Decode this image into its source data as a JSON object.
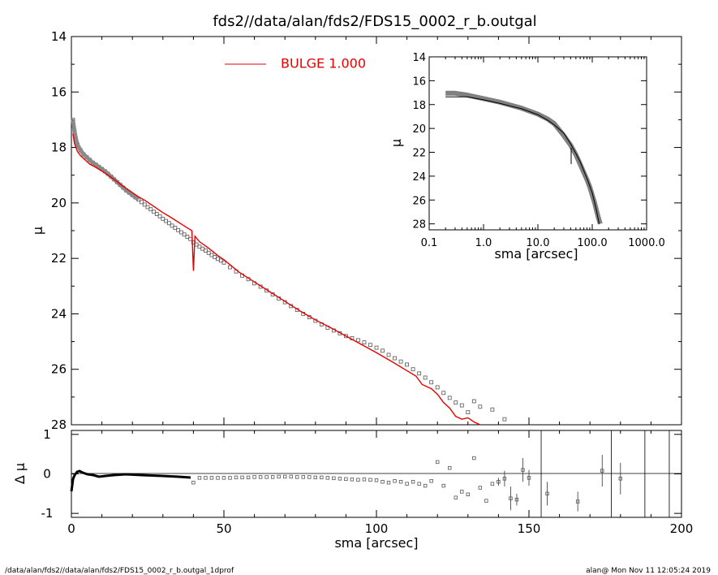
{
  "footer": {
    "left": "/data/alan/fds2//data/alan/fds2/FDS15_0002_r_b.outgal_1dprof",
    "right": "alan@  Mon Nov 11 12:05:24 2019"
  },
  "colors": {
    "model": "#e60000",
    "data": "#707070",
    "axis": "#000000"
  },
  "chart_data": [
    {
      "type": "scatter",
      "panel": "main",
      "title": "fds2//data/alan/fds2/FDS15_0002_r_b.outgal",
      "xlabel": "",
      "ylabel": "μ",
      "xlim": [
        0,
        200
      ],
      "ylim": [
        28,
        14
      ],
      "yticks": [
        14,
        16,
        18,
        20,
        22,
        24,
        26,
        28
      ],
      "legend": {
        "label": "BULGE  1.000",
        "placement": "top-center"
      },
      "series": [
        {
          "name": "data",
          "style": "squares",
          "x": [
            0.5,
            1,
            1.5,
            2,
            3,
            4,
            5,
            6,
            7,
            8,
            9,
            10,
            11,
            12,
            13,
            14,
            15,
            16,
            17,
            18,
            19,
            20,
            21,
            22,
            23,
            24,
            25,
            26,
            27,
            28,
            29,
            30,
            31,
            32,
            33,
            34,
            35,
            36,
            37,
            38,
            39,
            40,
            41,
            42,
            43,
            44,
            45,
            46,
            47,
            48,
            49,
            50,
            52,
            54,
            56,
            58,
            60,
            62,
            64,
            66,
            68,
            70,
            72,
            74,
            76,
            78,
            80,
            82,
            84,
            86,
            88,
            90,
            92,
            94,
            96,
            98,
            100,
            102,
            104,
            106,
            108,
            110,
            112,
            114,
            116,
            118,
            120,
            122,
            124,
            126,
            128,
            130,
            132,
            134,
            138,
            142
          ],
          "y": [
            17.0,
            17.4,
            17.7,
            17.9,
            18.1,
            18.25,
            18.35,
            18.45,
            18.55,
            18.62,
            18.7,
            18.78,
            18.86,
            18.95,
            19.05,
            19.15,
            19.25,
            19.35,
            19.45,
            19.55,
            19.63,
            19.72,
            19.8,
            19.88,
            19.97,
            20.06,
            20.15,
            20.23,
            20.32,
            20.4,
            20.48,
            20.57,
            20.65,
            20.73,
            20.82,
            20.9,
            20.98,
            21.06,
            21.14,
            21.22,
            21.3,
            21.42,
            21.5,
            21.58,
            21.65,
            21.72,
            21.8,
            21.88,
            21.95,
            22.02,
            22.08,
            22.15,
            22.32,
            22.47,
            22.62,
            22.75,
            22.9,
            23.02,
            23.16,
            23.3,
            23.45,
            23.58,
            23.72,
            23.86,
            24.0,
            24.12,
            24.25,
            24.38,
            24.5,
            24.6,
            24.7,
            24.8,
            24.88,
            24.95,
            25.03,
            25.12,
            25.22,
            25.33,
            25.48,
            25.6,
            25.72,
            25.83,
            26.0,
            26.15,
            26.3,
            26.47,
            26.65,
            26.85,
            27.03,
            27.2,
            27.3,
            27.55,
            27.15,
            27.35,
            27.45,
            27.8
          ]
        },
        {
          "name": "BULGE  1.000",
          "style": "line",
          "x": [
            0.5,
            1,
            2,
            3,
            4,
            5,
            6,
            8,
            10,
            12,
            14,
            16,
            18,
            20,
            22,
            24,
            26,
            28,
            30,
            32,
            34,
            36,
            38,
            39.5,
            40,
            40.5,
            42,
            44,
            46,
            48,
            50,
            55,
            60,
            65,
            70,
            75,
            80,
            85,
            90,
            95,
            100,
            105,
            110,
            113,
            115,
            118,
            120,
            122,
            124,
            126,
            128,
            130,
            132,
            134
          ],
          "y": [
            17.5,
            17.85,
            18.15,
            18.3,
            18.4,
            18.5,
            18.6,
            18.72,
            18.85,
            19.0,
            19.15,
            19.32,
            19.48,
            19.63,
            19.78,
            19.9,
            20.05,
            20.2,
            20.35,
            20.48,
            20.62,
            20.76,
            20.9,
            21.0,
            22.45,
            21.2,
            21.4,
            21.55,
            21.72,
            21.9,
            22.05,
            22.5,
            22.85,
            23.2,
            23.55,
            23.9,
            24.22,
            24.5,
            24.8,
            25.1,
            25.4,
            25.72,
            26.05,
            26.25,
            26.55,
            26.7,
            26.9,
            27.2,
            27.4,
            27.7,
            27.8,
            27.75,
            27.9,
            28.0
          ]
        }
      ]
    },
    {
      "type": "scatter",
      "panel": "residual",
      "xlabel": "sma [arcsec]",
      "ylabel": "Δ μ",
      "xlim": [
        0,
        200
      ],
      "ylim": [
        -1.1,
        1.1
      ],
      "xticks": [
        0,
        50,
        100,
        150,
        200
      ],
      "yticks": [
        -1,
        0,
        1
      ],
      "series": [
        {
          "name": "residual",
          "style": "squares",
          "x": [
            40,
            42,
            44,
            46,
            48,
            50,
            52,
            54,
            56,
            58,
            60,
            62,
            64,
            66,
            68,
            70,
            72,
            74,
            76,
            78,
            80,
            82,
            84,
            86,
            88,
            90,
            92,
            94,
            96,
            98,
            100,
            102,
            104,
            106,
            108,
            110,
            112,
            114,
            116,
            118,
            120,
            122,
            124,
            126,
            128,
            130,
            132,
            134,
            136,
            138,
            140,
            142,
            144,
            146,
            148,
            150,
            156,
            166,
            174,
            180
          ],
          "y": [
            -0.22,
            -0.1,
            -0.1,
            -0.1,
            -0.1,
            -0.1,
            -0.1,
            -0.09,
            -0.09,
            -0.09,
            -0.08,
            -0.08,
            -0.08,
            -0.08,
            -0.07,
            -0.07,
            -0.07,
            -0.08,
            -0.08,
            -0.08,
            -0.09,
            -0.09,
            -0.1,
            -0.11,
            -0.12,
            -0.13,
            -0.14,
            -0.15,
            -0.14,
            -0.15,
            -0.16,
            -0.2,
            -0.22,
            -0.18,
            -0.2,
            -0.25,
            -0.2,
            -0.25,
            -0.3,
            -0.18,
            0.3,
            -0.3,
            0.15,
            -0.6,
            -0.45,
            -0.52,
            0.4,
            -0.35,
            -0.68,
            -0.25,
            -0.2,
            -0.12,
            -0.62,
            -0.65,
            0.1,
            -0.1,
            -0.5,
            -0.7,
            0.08,
            -0.12
          ],
          "err": [
            0,
            0,
            0,
            0,
            0,
            0,
            0,
            0,
            0,
            0,
            0,
            0,
            0,
            0,
            0,
            0,
            0,
            0,
            0,
            0,
            0,
            0,
            0,
            0,
            0,
            0,
            0,
            0,
            0,
            0,
            0,
            0,
            0,
            0,
            0,
            0,
            0,
            0,
            0,
            0,
            0,
            0,
            0,
            0,
            0,
            0,
            0,
            0,
            0,
            0,
            0.1,
            0.2,
            0.3,
            0.15,
            0.3,
            0.2,
            0.3,
            0.25,
            0.4,
            0.4
          ]
        }
      ]
    },
    {
      "type": "line",
      "panel": "inset",
      "xlabel": "sma [arcsec]",
      "ylabel": "μ",
      "xscale": "log",
      "xlim": [
        0.1,
        1000
      ],
      "ylim": [
        28.5,
        14
      ],
      "xticks": [
        "0.1",
        "1.0",
        "10.0",
        "100.0",
        "1000.0"
      ],
      "yticks": [
        14,
        16,
        18,
        20,
        22,
        24,
        26,
        28
      ],
      "series": [
        {
          "name": "data",
          "x": [
            0.2,
            0.3,
            0.5,
            1,
            2,
            5,
            10,
            15,
            20,
            30,
            40,
            50,
            60,
            70,
            80,
            90,
            100,
            110,
            120,
            130,
            140
          ],
          "y": [
            17.05,
            17.05,
            17.2,
            17.5,
            17.8,
            18.3,
            18.8,
            19.2,
            19.6,
            20.6,
            21.4,
            22.2,
            23.0,
            23.7,
            24.3,
            24.9,
            25.6,
            26.2,
            26.9,
            27.5,
            28.0
          ]
        },
        {
          "name": "BULGE  1.000",
          "x": [
            0.2,
            0.5,
            1,
            2,
            5,
            10,
            15,
            20,
            30,
            40,
            50,
            60,
            80,
            100,
            120,
            134
          ],
          "y": [
            17.35,
            17.35,
            17.6,
            17.9,
            18.35,
            18.85,
            19.3,
            19.7,
            20.4,
            21.3,
            22.1,
            22.8,
            24.2,
            25.4,
            26.9,
            28.0
          ]
        }
      ]
    }
  ]
}
